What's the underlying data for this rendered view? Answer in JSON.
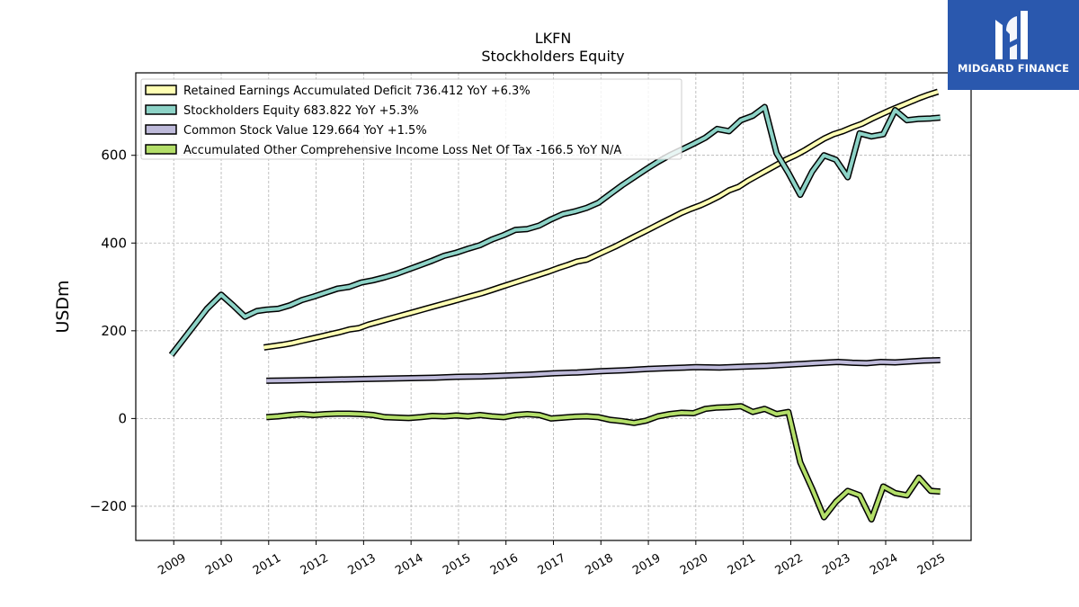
{
  "logo": {
    "text": "MIDGARD FINANCE",
    "icon": "midgard-logo-icon",
    "bg": "#2a58ae"
  },
  "chart_data": {
    "type": "line",
    "title": "LKFN",
    "subtitle": "Stockholders  Equity",
    "xlabel": "",
    "ylabel": "USDm",
    "xlim": [
      2008.2,
      2025.8
    ],
    "ylim": [
      -278,
      788
    ],
    "x_ticks": [
      "2009",
      "2010",
      "2011",
      "2012",
      "2013",
      "2014",
      "2015",
      "2016",
      "2017",
      "2018",
      "2019",
      "2020",
      "2021",
      "2022",
      "2023",
      "2024",
      "2025"
    ],
    "y_ticks": [
      -200,
      0,
      200,
      400,
      600
    ],
    "y_tick_labels": [
      "−200",
      "0",
      "200",
      "400",
      "600"
    ],
    "grid": true,
    "legend_position": "top-left",
    "series": [
      {
        "name": "Retained Earnings Accumulated Deficit",
        "legend_label": "Retained Earnings Accumulated Deficit  736.412 YoY +6.3%",
        "color": "#ffffb3",
        "x": [
          2010.9,
          2011.1,
          2011.3,
          2011.5,
          2011.7,
          2011.9,
          2012.1,
          2012.3,
          2012.5,
          2012.7,
          2012.9,
          2013.1,
          2013.3,
          2013.5,
          2013.7,
          2013.9,
          2014.1,
          2014.3,
          2014.5,
          2014.7,
          2014.9,
          2015.1,
          2015.3,
          2015.5,
          2015.7,
          2015.9,
          2016.1,
          2016.3,
          2016.5,
          2016.7,
          2016.9,
          2017.1,
          2017.3,
          2017.5,
          2017.7,
          2017.9,
          2018.1,
          2018.3,
          2018.5,
          2018.7,
          2018.9,
          2019.1,
          2019.3,
          2019.5,
          2019.7,
          2019.9,
          2020.1,
          2020.3,
          2020.5,
          2020.7,
          2020.9,
          2021.1,
          2021.3,
          2021.5,
          2021.7,
          2021.9,
          2022.1,
          2022.3,
          2022.5,
          2022.7,
          2022.9,
          2023.1,
          2023.3,
          2023.5,
          2023.7,
          2023.9,
          2024.1,
          2024.3,
          2024.5,
          2024.7,
          2024.9,
          2025.1
        ],
        "values": [
          162,
          165,
          168,
          172,
          177,
          182,
          187,
          192,
          197,
          203,
          206,
          214,
          220,
          226,
          232,
          238,
          244,
          250,
          256,
          262,
          268,
          274,
          280,
          286,
          293,
          300,
          307,
          314,
          321,
          328,
          335,
          343,
          350,
          358,
          362,
          372,
          382,
          392,
          403,
          414,
          425,
          436,
          447,
          458,
          469,
          478,
          486,
          496,
          507,
          520,
          528,
          542,
          554,
          566,
          578,
          590,
          600,
          612,
          625,
          638,
          648,
          655,
          664,
          672,
          683,
          693,
          703,
          712,
          721,
          730,
          738,
          745
        ],
        "last_value": "736.412",
        "yoy": "+6.3%"
      },
      {
        "name": "Stockholders Equity",
        "legend_label": "Stockholders Equity  683.822 YoY +5.3%",
        "color": "#8dd3c7",
        "x": [
          2008.95,
          2009.2,
          2009.45,
          2009.7,
          2010.0,
          2010.25,
          2010.5,
          2010.75,
          2010.95,
          2011.2,
          2011.45,
          2011.7,
          2011.95,
          2012.2,
          2012.45,
          2012.7,
          2012.95,
          2013.2,
          2013.45,
          2013.7,
          2013.95,
          2014.2,
          2014.45,
          2014.7,
          2014.95,
          2015.2,
          2015.45,
          2015.7,
          2015.95,
          2016.2,
          2016.45,
          2016.7,
          2016.95,
          2017.2,
          2017.45,
          2017.7,
          2017.95,
          2018.2,
          2018.45,
          2018.7,
          2018.95,
          2019.2,
          2019.45,
          2019.7,
          2019.95,
          2020.2,
          2020.45,
          2020.7,
          2020.95,
          2021.2,
          2021.45,
          2021.7,
          2021.95,
          2022.2,
          2022.45,
          2022.7,
          2022.95,
          2023.2,
          2023.45,
          2023.7,
          2023.95,
          2024.2,
          2024.45,
          2024.7,
          2024.95,
          2025.15
        ],
        "values": [
          145,
          180,
          215,
          250,
          282,
          258,
          232,
          245,
          248,
          250,
          258,
          270,
          278,
          287,
          296,
          300,
          310,
          315,
          322,
          330,
          340,
          350,
          360,
          371,
          378,
          387,
          395,
          408,
          418,
          430,
          432,
          440,
          454,
          466,
          472,
          480,
          492,
          512,
          532,
          550,
          568,
          585,
          600,
          613,
          626,
          640,
          660,
          655,
          680,
          690,
          710,
          605,
          560,
          510,
          563,
          600,
          590,
          550,
          650,
          643,
          648,
          703,
          680,
          683,
          684,
          686
        ],
        "last_value": "683.822",
        "yoy": "+5.3%"
      },
      {
        "name": "Common Stock Value",
        "legend_label": "Common Stock Value  129.664 YoY +1.5%",
        "color": "#bebada",
        "x": [
          2010.95,
          2011.5,
          2012.0,
          2012.5,
          2013.0,
          2013.5,
          2014.0,
          2014.5,
          2015.0,
          2015.5,
          2016.0,
          2016.5,
          2017.0,
          2017.5,
          2018.0,
          2018.5,
          2019.0,
          2019.5,
          2020.0,
          2020.5,
          2021.0,
          2021.5,
          2022.0,
          2022.5,
          2023.0,
          2023.3,
          2023.6,
          2023.9,
          2024.2,
          2024.5,
          2024.8,
          2025.15
        ],
        "values": [
          86,
          87,
          88,
          89,
          90,
          91,
          92,
          93,
          95,
          96,
          98,
          100,
          103,
          105,
          108,
          110,
          113,
          115,
          117,
          116,
          118,
          120,
          123,
          126,
          129,
          127,
          126,
          129,
          128,
          130,
          132,
          133
        ],
        "last_value": "129.664",
        "yoy": "+1.5%"
      },
      {
        "name": "Accumulated Other Comprehensive Income Loss Net Of Tax",
        "legend_label": "Accumulated Other Comprehensive Income Loss Net Of Tax  -166.5 YoY N/A",
        "color": "#b3de69",
        "x": [
          2010.95,
          2011.2,
          2011.45,
          2011.7,
          2011.95,
          2012.2,
          2012.45,
          2012.7,
          2012.95,
          2013.2,
          2013.45,
          2013.7,
          2013.95,
          2014.2,
          2014.45,
          2014.7,
          2014.95,
          2015.2,
          2015.45,
          2015.7,
          2015.95,
          2016.2,
          2016.45,
          2016.7,
          2016.95,
          2017.2,
          2017.45,
          2017.7,
          2017.95,
          2018.2,
          2018.45,
          2018.7,
          2018.95,
          2019.2,
          2019.45,
          2019.7,
          2019.95,
          2020.2,
          2020.45,
          2020.7,
          2020.95,
          2021.2,
          2021.45,
          2021.7,
          2021.95,
          2022.2,
          2022.45,
          2022.7,
          2022.95,
          2023.2,
          2023.45,
          2023.7,
          2023.95,
          2024.2,
          2024.45,
          2024.7,
          2024.95,
          2025.15
        ],
        "values": [
          3,
          5,
          8,
          10,
          8,
          10,
          11,
          11,
          10,
          8,
          3,
          2,
          1,
          3,
          6,
          5,
          7,
          5,
          8,
          5,
          3,
          8,
          10,
          8,
          0,
          2,
          4,
          5,
          3,
          -3,
          -6,
          -10,
          -5,
          5,
          10,
          13,
          12,
          22,
          25,
          26,
          28,
          15,
          22,
          10,
          15,
          -100,
          -160,
          -225,
          -190,
          -165,
          -175,
          -230,
          -155,
          -170,
          -175,
          -135,
          -165,
          -166.5
        ],
        "last_value": "-166.5",
        "yoy": "N/A"
      }
    ]
  }
}
